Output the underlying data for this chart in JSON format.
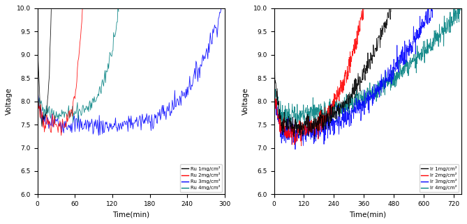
{
  "left": {
    "xlabel": "Time(min)",
    "ylabel": "Voltage",
    "xlim": [
      0,
      300
    ],
    "ylim": [
      6.0,
      10.0
    ],
    "xticks": [
      0,
      60,
      120,
      180,
      240,
      300
    ],
    "yticks": [
      6.0,
      6.5,
      7.0,
      7.5,
      8.0,
      8.5,
      9.0,
      9.5,
      10.0
    ],
    "legend": [
      "Ru 1mg/cm²",
      "Ru 2mg/cm²",
      "Ru 3mg/cm²",
      "Ru 4mg/cm²"
    ],
    "colors": [
      "black",
      "red",
      "blue",
      "teal"
    ],
    "series": [
      {
        "t_drop_end": 5,
        "t_flat_end": 8,
        "t_rise_end": 22,
        "v_start": 9.2,
        "v_flat": 7.65,
        "noise": 0.07,
        "rise_exp": 3.5
      },
      {
        "t_drop_end": 10,
        "t_flat_end": 40,
        "t_rise_end": 72,
        "v_start": 8.1,
        "v_flat": 7.55,
        "noise": 0.1,
        "rise_exp": 3.0
      },
      {
        "t_drop_end": 10,
        "t_flat_end": 140,
        "t_rise_end": 295,
        "v_start": 8.1,
        "v_flat": 7.55,
        "noise": 0.105,
        "rise_exp": 2.8
      },
      {
        "t_drop_end": 8,
        "t_flat_end": 55,
        "t_rise_end": 130,
        "v_start": 8.1,
        "v_flat": 7.8,
        "noise": 0.09,
        "rise_exp": 3.2
      }
    ]
  },
  "right": {
    "xlabel": "Time(min)",
    "ylabel": "Voltage",
    "xlim": [
      0,
      750
    ],
    "ylim": [
      6.0,
      10.0
    ],
    "xticks": [
      0,
      120,
      240,
      360,
      480,
      600,
      720
    ],
    "yticks": [
      6.0,
      6.5,
      7.0,
      7.5,
      8.0,
      8.5,
      9.0,
      9.5,
      10.0
    ],
    "legend": [
      "Ir 1mg/cm²",
      "Ir 2mg/cm²",
      "Ir 3mg/cm²",
      "Ir 4mg/cm²"
    ],
    "colors": [
      "black",
      "red",
      "blue",
      "teal"
    ],
    "series": [
      {
        "t_drop_end": 30,
        "t_flat_end": 120,
        "t_rise_end": 470,
        "v_start": 8.6,
        "v_flat": 7.5,
        "noise": 0.11,
        "rise_exp": 2.2
      },
      {
        "t_drop_end": 30,
        "t_flat_end": 100,
        "t_rise_end": 360,
        "v_start": 8.1,
        "v_flat": 7.4,
        "noise": 0.11,
        "rise_exp": 2.5
      },
      {
        "t_drop_end": 30,
        "t_flat_end": 120,
        "t_rise_end": 635,
        "v_start": 8.1,
        "v_flat": 7.35,
        "noise": 0.12,
        "rise_exp": 1.9
      },
      {
        "t_drop_end": 30,
        "t_flat_end": 120,
        "t_rise_end": 748,
        "v_start": 8.1,
        "v_flat": 7.75,
        "noise": 0.11,
        "rise_exp": 2.0
      }
    ]
  }
}
